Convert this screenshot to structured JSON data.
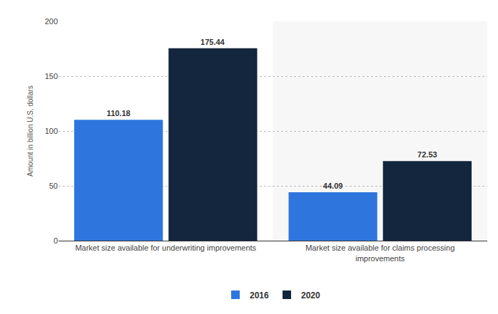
{
  "chart_data": {
    "type": "bar",
    "y_label": "Amount in billion U.S. dollars",
    "categories": [
      "Market size available for underwriting improvements",
      "Market size available for claims processing improvements"
    ],
    "series": [
      {
        "name": "2016",
        "color": "#2e76dd",
        "values": [
          110.18,
          44.09
        ]
      },
      {
        "name": "2020",
        "color": "#14263d",
        "values": [
          175.44,
          72.53
        ]
      }
    ],
    "ylim": [
      0,
      200
    ],
    "yticks": [
      0,
      50,
      100,
      150,
      200
    ],
    "grid": true,
    "legend": "bottom",
    "data_labels": true
  }
}
